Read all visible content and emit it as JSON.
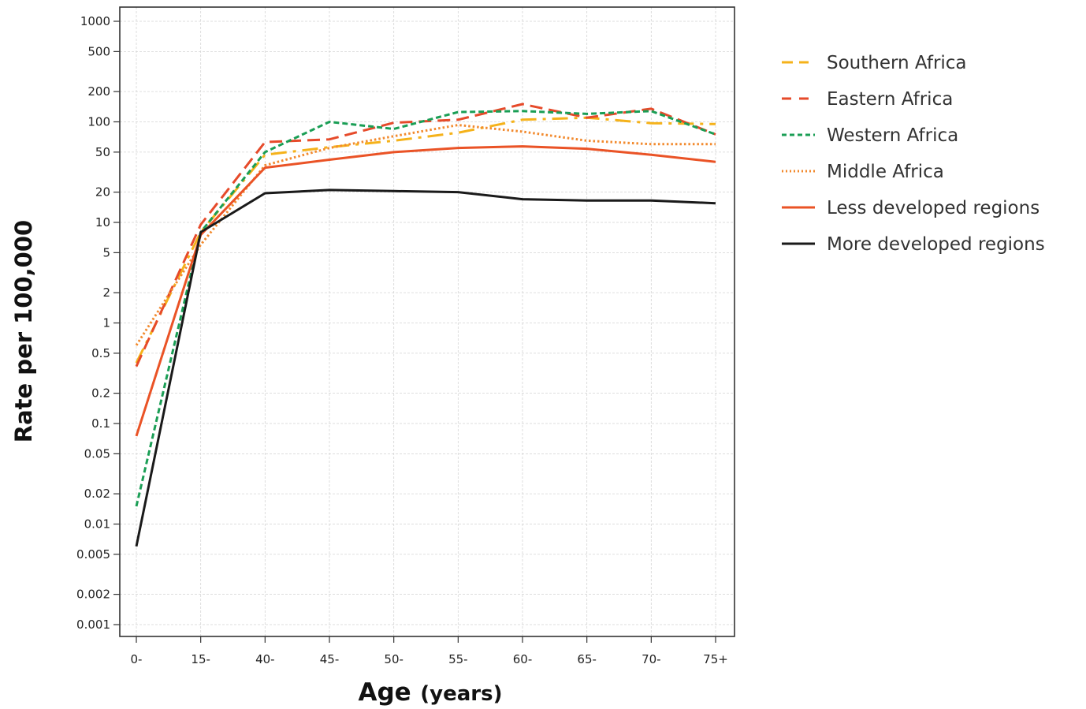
{
  "chart_data": {
    "type": "line",
    "xlabel": "Age",
    "xlabel_unit": "(years)",
    "ylabel": "Rate per 100,000",
    "yscale": "log",
    "ylim": [
      0.001,
      1000
    ],
    "grid": true,
    "legend_position": "right",
    "categories": [
      "0-",
      "15-",
      "40-",
      "45-",
      "50-",
      "55-",
      "60-",
      "65-",
      "70-",
      "75+"
    ],
    "yticks": [
      {
        "value": 1000,
        "label": "1000"
      },
      {
        "value": 500,
        "label": "500"
      },
      {
        "value": 200,
        "label": "200"
      },
      {
        "value": 100,
        "label": "100"
      },
      {
        "value": 50,
        "label": "50"
      },
      {
        "value": 20,
        "label": "20"
      },
      {
        "value": 10,
        "label": "10"
      },
      {
        "value": 5,
        "label": "5"
      },
      {
        "value": 2,
        "label": "2"
      },
      {
        "value": 1,
        "label": "1"
      },
      {
        "value": 0.5,
        "label": "0.5"
      },
      {
        "value": 0.2,
        "label": "0.2"
      },
      {
        "value": 0.1,
        "label": "0.1"
      },
      {
        "value": 0.05,
        "label": "0.05"
      },
      {
        "value": 0.02,
        "label": "0.02"
      },
      {
        "value": 0.01,
        "label": "0.01"
      },
      {
        "value": 0.005,
        "label": "0.005"
      },
      {
        "value": 0.002,
        "label": "0.002"
      },
      {
        "value": 0.001,
        "label": "0.001"
      }
    ],
    "series": [
      {
        "name": "Southern Africa",
        "color": "#f5b21a",
        "dash": "long-dash-dot",
        "values": [
          0.4,
          8,
          47,
          56,
          65,
          78,
          105,
          110,
          97,
          95
        ]
      },
      {
        "name": "Eastern Africa",
        "color": "#e64a2a",
        "dash": "dashed",
        "values": [
          0.37,
          9.5,
          63,
          67,
          98,
          105,
          150,
          110,
          135,
          75
        ]
      },
      {
        "name": "Western Africa",
        "color": "#1a9e55",
        "dash": "short-dash",
        "values": [
          0.015,
          8,
          50,
          100,
          85,
          125,
          128,
          120,
          128,
          75
        ]
      },
      {
        "name": "Middle Africa",
        "color": "#f28a2e",
        "dash": "dotted",
        "values": [
          0.6,
          6,
          37,
          55,
          72,
          93,
          80,
          65,
          60,
          60
        ]
      },
      {
        "name": "Less developed regions",
        "color": "#ea5326",
        "dash": "solid",
        "values": [
          0.075,
          7.5,
          35,
          42,
          50,
          55,
          57,
          54,
          47,
          40
        ]
      },
      {
        "name": "More developed regions",
        "color": "#1a1a1a",
        "dash": "solid",
        "values": [
          0.006,
          8,
          19.5,
          21,
          20.5,
          20,
          17,
          16.5,
          16.5,
          15.5
        ]
      }
    ]
  }
}
